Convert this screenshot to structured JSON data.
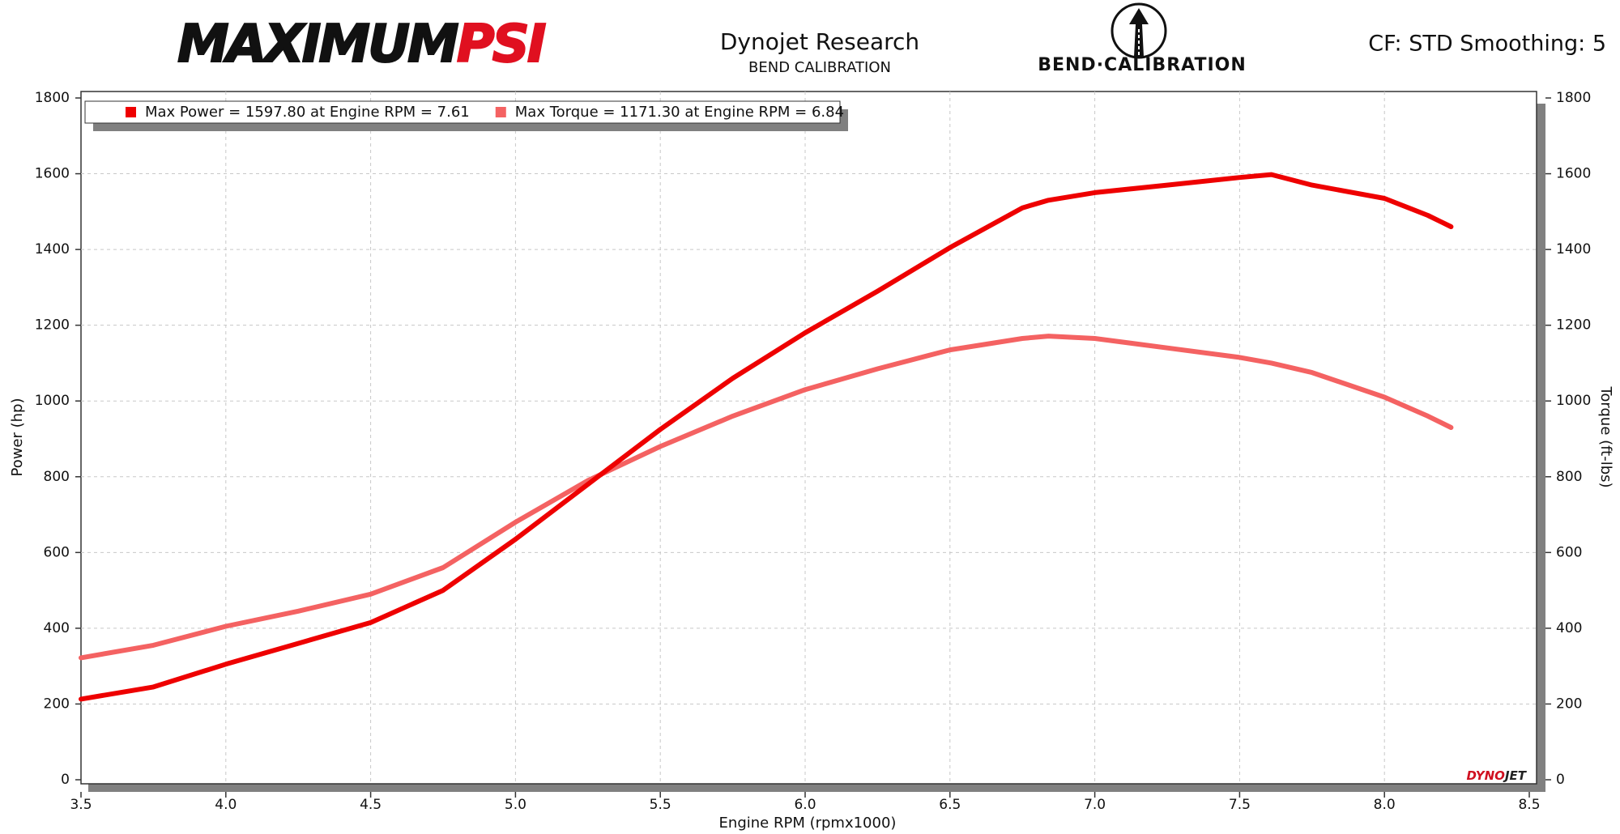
{
  "header": {
    "logo_left": [
      "MAXIMUM",
      "PSI"
    ],
    "title": "Dynojet Research",
    "subtitle": "BEND CALIBRATION",
    "logo_center": "BEND·CALIBRATION",
    "settings": "CF: STD Smoothing: 5",
    "watermark": [
      "DYNO",
      "JET"
    ]
  },
  "chart_data": {
    "type": "line",
    "xlabel": "Engine RPM (rpmx1000)",
    "ylabel": "Power (hp)",
    "y2label": "Torque (ft-lbs)",
    "x": [
      3.5,
      3.75,
      4.0,
      4.25,
      4.5,
      4.75,
      5.0,
      5.25,
      5.5,
      5.75,
      6.0,
      6.25,
      6.5,
      6.75,
      6.84,
      7.0,
      7.25,
      7.5,
      7.61,
      7.75,
      8.0,
      8.15,
      8.23
    ],
    "series": [
      {
        "name": "Max Power = 1597.80 at Engine RPM = 7.61",
        "color": "#ee0000",
        "axis": "y",
        "values": [
          213,
          245,
          305,
          360,
          415,
          500,
          635,
          780,
          925,
          1060,
          1180,
          1290,
          1405,
          1510,
          1530,
          1550,
          1570,
          1590,
          1597.8,
          1570,
          1535,
          1490,
          1460
        ]
      },
      {
        "name": "Max Torque = 1171.30 at Engine RPM = 6.84",
        "color": "#f46262",
        "axis": "y2",
        "values": [
          322,
          355,
          405,
          445,
          490,
          560,
          680,
          790,
          880,
          960,
          1030,
          1085,
          1135,
          1165,
          1171.3,
          1165,
          1140,
          1115,
          1100,
          1075,
          1010,
          960,
          930
        ]
      }
    ],
    "xlim": [
      3.5,
      8.5
    ],
    "xticks": [
      3.5,
      {
        "value": 4,
        "label": "4.0"
      },
      4.5,
      {
        "value": 5,
        "label": "5.0"
      },
      5.5,
      {
        "value": 6,
        "label": "6.0"
      },
      6.5,
      {
        "value": 7,
        "label": "7.0"
      },
      7.5,
      {
        "value": 8,
        "label": "8.0"
      },
      8.5
    ],
    "ylim": [
      0,
      1800
    ],
    "yticks": [
      0,
      200,
      400,
      600,
      800,
      1000,
      1200,
      1400,
      1600,
      1800
    ],
    "y2lim": [
      0,
      1800
    ],
    "y2ticks": [
      0,
      200,
      400,
      600,
      800,
      1000,
      1200,
      1400,
      1600,
      1800
    ],
    "grid": true,
    "legend": "top-left"
  }
}
